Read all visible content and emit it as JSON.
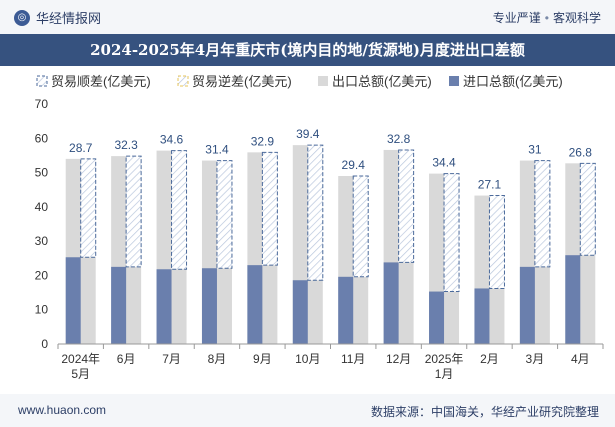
{
  "header": {
    "brand": "华经情报网",
    "tag1": "专业严谨",
    "tag2": "客观科学",
    "separator": "•"
  },
  "footer": {
    "website": "www.huaon.com",
    "source": "数据来源：中国海关，华经产业研究院整理"
  },
  "colors": {
    "export": "#d9d9d9",
    "import": "#6a7fad",
    "surplus_outline": "#4b6a9b",
    "deficit_outline": "#e7c45a",
    "title_bg": "#36527f"
  },
  "chart_data": {
    "type": "bar",
    "title": "2024-2025年4月年重庆市(境内目的地/货源地)月度进出口差额",
    "categories": [
      "2024年\n5月",
      "6月",
      "7月",
      "8月",
      "9月",
      "10月",
      "11月",
      "12月",
      "2025年\n1月",
      "2月",
      "3月",
      "4月"
    ],
    "series": [
      {
        "name": "贸易顺差(亿美元)",
        "values": [
          28.7,
          32.3,
          34.6,
          31.4,
          32.9,
          39.4,
          29.4,
          32.8,
          34.4,
          27.1,
          31,
          26.8
        ]
      },
      {
        "name": "贸易逆差(亿美元)",
        "values": [
          0,
          0,
          0,
          0,
          0,
          0,
          0,
          0,
          0,
          0,
          0,
          0
        ]
      },
      {
        "name": "出口总额(亿美元)",
        "values": [
          54,
          54.8,
          56.4,
          53.5,
          55.9,
          58.0,
          49.0,
          56.6,
          49.7,
          43.3,
          53.5,
          52.7
        ]
      },
      {
        "name": "进口总额(亿美元)",
        "values": [
          25.3,
          22.5,
          21.8,
          22.1,
          23.0,
          18.6,
          19.6,
          23.8,
          15.3,
          16.2,
          22.5,
          25.9
        ]
      }
    ],
    "ylim": [
      0,
      70
    ],
    "yticks": [
      0,
      10,
      20,
      30,
      40,
      50,
      60,
      70
    ],
    "legend_position": "top",
    "grid": false
  }
}
